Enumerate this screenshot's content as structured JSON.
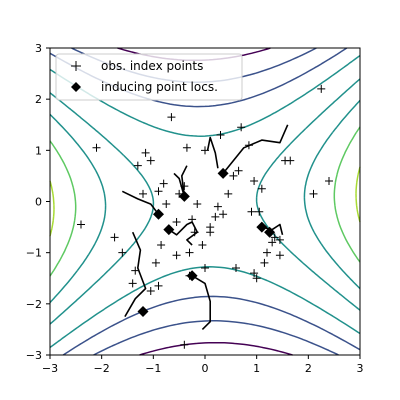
{
  "chart_data": {
    "type": "scatter",
    "title": "",
    "xlabel": "",
    "ylabel": "",
    "xlim": [
      -3,
      3
    ],
    "ylim": [
      -3,
      3
    ],
    "xticks": [
      -3,
      -2,
      -1,
      0,
      1,
      2,
      3
    ],
    "yticks": [
      -3,
      -2,
      -1,
      0,
      1,
      2,
      3
    ],
    "xtick_labels": [
      "−3",
      "−2",
      "−1",
      "0",
      "1",
      "2",
      "3"
    ],
    "ytick_labels": [
      "−3",
      "−2",
      "−1",
      "0",
      "1",
      "2",
      "3"
    ],
    "grid": false,
    "legend": {
      "placement": "top-left",
      "entries": [
        "obs. index points",
        "inducing point locs."
      ]
    },
    "colors": {
      "observations": "#000000",
      "inducing": "#000000",
      "trajectories": "#000000",
      "contour_palette": [
        "#440154",
        "#3b528b",
        "#21918c",
        "#5ec962",
        "#a8db34"
      ]
    },
    "background_contours": {
      "description_kind": "filled-style line contours (viridis)",
      "levels": 9
    },
    "series": [
      {
        "name": "obs. index points",
        "marker": "plus",
        "x": [
          -2.4,
          -2.1,
          -1.75,
          -1.3,
          -1.6,
          -1.2,
          -1.15,
          -1.05,
          -0.9,
          -0.8,
          -0.75,
          -0.65,
          -0.55,
          -0.5,
          -0.4,
          -0.35,
          -0.25,
          -0.2,
          -0.15,
          -0.05,
          0.0,
          0.1,
          0.2,
          0.25,
          0.35,
          0.45,
          0.55,
          0.65,
          0.7,
          0.85,
          0.9,
          0.95,
          1.05,
          1.1,
          1.15,
          1.2,
          1.3,
          1.35,
          1.45,
          1.55,
          1.65,
          2.1,
          2.25,
          2.4,
          -1.4,
          -1.35,
          -1.05,
          -0.95,
          -0.9,
          -0.85,
          -0.55,
          -0.3,
          0.0,
          0.1,
          0.6,
          0.95,
          1.45,
          -0.4,
          -0.3,
          1.0,
          0.3
        ],
        "y": [
          -0.45,
          1.05,
          -0.7,
          0.7,
          -1.0,
          0.15,
          0.95,
          0.8,
          0.2,
          0.35,
          -0.05,
          1.65,
          -0.4,
          0.15,
          0.3,
          1.05,
          -0.35,
          -0.6,
          -0.05,
          -0.85,
          1.0,
          -0.5,
          -0.3,
          -0.1,
          -0.25,
          0.15,
          0.5,
          0.6,
          1.45,
          1.1,
          -0.2,
          0.4,
          -0.2,
          0.25,
          -1.2,
          -1.0,
          -0.8,
          -0.7,
          -1.05,
          0.8,
          0.8,
          0.15,
          2.2,
          0.4,
          -1.6,
          -1.35,
          -1.75,
          -1.2,
          -1.65,
          -0.85,
          -1.05,
          -1.45,
          -1.3,
          -0.6,
          -1.3,
          -1.4,
          -0.75,
          -2.8,
          -1.0,
          -1.5,
          1.3
        ],
        "note": "approximate positions read from the figure"
      },
      {
        "name": "inducing point locs.",
        "marker": "diamond",
        "x": [
          -1.2,
          -0.9,
          -0.7,
          -0.4,
          -0.25,
          0.35,
          1.1,
          1.25
        ],
        "y": [
          -2.15,
          -0.25,
          -0.55,
          0.1,
          -1.45,
          0.55,
          -0.5,
          -0.6
        ]
      }
    ],
    "trajectories": [
      {
        "from": [
          -1.2,
          -2.15
        ],
        "points": [
          [
            -1.55,
            -2.25
          ],
          [
            -1.35,
            -1.9
          ],
          [
            -1.15,
            -1.7
          ],
          [
            -1.3,
            -1.3
          ],
          [
            -1.25,
            -0.95
          ],
          [
            -1.4,
            -0.6
          ]
        ]
      },
      {
        "from": [
          -0.9,
          -0.25
        ],
        "points": [
          [
            -1.6,
            0.2
          ],
          [
            -1.3,
            0.05
          ],
          [
            -1.05,
            -0.05
          ],
          [
            -0.9,
            -0.25
          ]
        ]
      },
      {
        "from": [
          -0.4,
          0.1
        ],
        "points": [
          [
            -0.6,
            0.55
          ],
          [
            -0.5,
            0.45
          ],
          [
            -0.4,
            0.1
          ]
        ]
      },
      {
        "from": [
          -0.7,
          -0.55
        ],
        "points": [
          [
            -0.7,
            -0.55
          ],
          [
            -0.55,
            -0.65
          ],
          [
            -0.35,
            -0.45
          ],
          [
            -0.25,
            -0.4
          ],
          [
            -0.15,
            -0.6
          ],
          [
            -0.35,
            -0.75
          ],
          [
            -0.25,
            -0.85
          ]
        ]
      },
      {
        "from": [
          -0.25,
          -1.45
        ],
        "points": [
          [
            -0.25,
            -1.45
          ],
          [
            0.0,
            -1.6
          ],
          [
            0.1,
            -1.95
          ],
          [
            0.1,
            -2.35
          ],
          [
            -0.05,
            -2.5
          ]
        ]
      },
      {
        "from": [
          0.35,
          0.55
        ],
        "points": [
          [
            0.35,
            0.55
          ],
          [
            0.55,
            0.8
          ],
          [
            0.75,
            1.05
          ],
          [
            1.1,
            1.2
          ],
          [
            1.45,
            1.15
          ],
          [
            1.6,
            1.5
          ]
        ]
      },
      {
        "from": [
          0.1,
          1.2
        ],
        "points": [
          [
            0.05,
            1.0
          ],
          [
            0.1,
            1.25
          ],
          [
            0.2,
            0.95
          ],
          [
            0.25,
            0.65
          ]
        ]
      },
      {
        "from": [
          1.1,
          -0.5
        ],
        "points": [
          [
            1.1,
            -0.5
          ],
          [
            1.3,
            -0.55
          ],
          [
            1.45,
            -0.45
          ],
          [
            1.5,
            -0.65
          ]
        ]
      },
      {
        "from": [
          -0.4,
          0.1
        ],
        "points": [
          [
            -0.4,
            0.1
          ],
          [
            -0.45,
            0.5
          ],
          [
            -0.35,
            0.7
          ]
        ]
      }
    ]
  }
}
